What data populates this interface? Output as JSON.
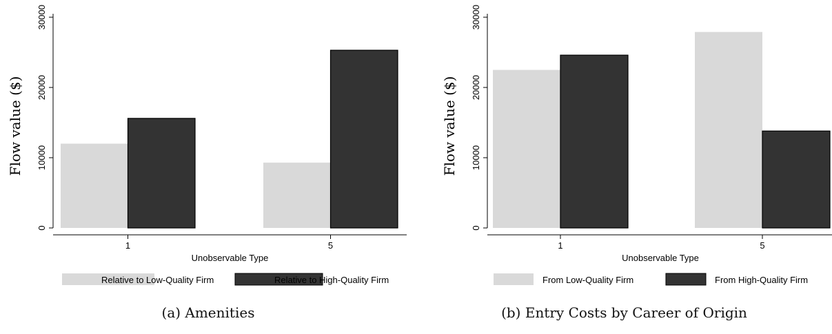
{
  "colors": {
    "low": "#d9d9d9",
    "high": "#333333",
    "axis": "#000000"
  },
  "chart_data": [
    {
      "type": "bar",
      "caption": "(a) Amenities",
      "xlabel": "Unobservable Type",
      "ylabel": "Flow value ($)",
      "ylim": [
        0,
        30000
      ],
      "yticks": [
        "0",
        "10000",
        "20000",
        "30000"
      ],
      "categories": [
        "1",
        "5"
      ],
      "series": [
        {
          "name": "Relative to Low-Quality Firm",
          "values": [
            12000,
            9300
          ]
        },
        {
          "name": "Relative to High-Quality Firm",
          "values": [
            15600,
            25300
          ]
        }
      ],
      "legend": "bottom"
    },
    {
      "type": "bar",
      "caption": "(b) Entry Costs by Career of Origin",
      "xlabel": "Unobservable Type",
      "ylabel": "Flow value ($)",
      "ylim": [
        0,
        30000
      ],
      "yticks": [
        "0",
        "10000",
        "20000",
        "30000"
      ],
      "categories": [
        "1",
        "5"
      ],
      "series": [
        {
          "name": "From Low-Quality Firm",
          "values": [
            22500,
            27900
          ]
        },
        {
          "name": "From High-Quality Firm",
          "values": [
            24600,
            13800
          ]
        }
      ],
      "legend": "bottom"
    }
  ]
}
